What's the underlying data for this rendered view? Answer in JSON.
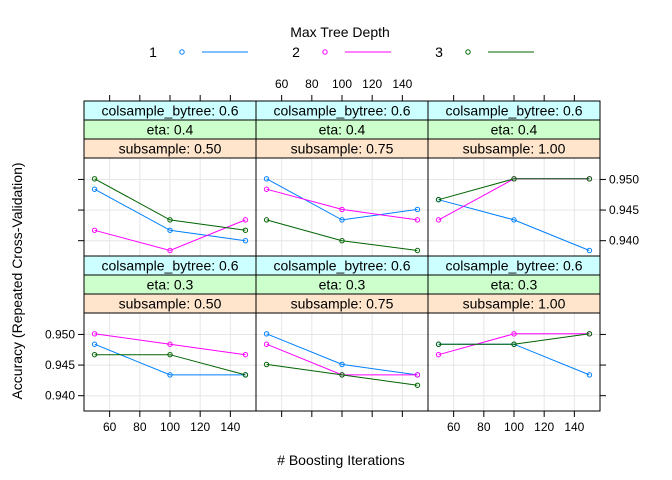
{
  "chart_data": {
    "type": "line",
    "xlabel": "# Boosting Iterations",
    "ylabel": "Accuracy (Repeated Cross-Validation)",
    "legend": {
      "title": "Max Tree Depth",
      "position": "top",
      "entries": [
        {
          "name": "1",
          "color": "#0080ff"
        },
        {
          "name": "2",
          "color": "#ff00ff"
        },
        {
          "name": "3",
          "color": "#006400"
        }
      ]
    },
    "x": [
      50,
      100,
      150
    ],
    "xticks": [
      60,
      80,
      100,
      120,
      140
    ],
    "xlim": [
      43,
      157
    ],
    "yticks": [
      0.94,
      0.945,
      0.95
    ],
    "ytick_labels": [
      "0.940",
      "0.945",
      "0.950"
    ],
    "ylim": [
      0.9375,
      0.9535
    ],
    "grid": true,
    "panels": [
      {
        "strips": [
          "colsample_bytree: 0.6",
          "eta: 0.4",
          "subsample: 0.50"
        ],
        "series": [
          {
            "name": "1",
            "values": [
              0.9484,
              0.9417,
              0.94
            ]
          },
          {
            "name": "2",
            "values": [
              0.9417,
              0.9384,
              0.9434
            ]
          },
          {
            "name": "3",
            "values": [
              0.9501,
              0.9434,
              0.9417
            ]
          }
        ]
      },
      {
        "strips": [
          "colsample_bytree: 0.6",
          "eta: 0.4",
          "subsample: 0.75"
        ],
        "series": [
          {
            "name": "1",
            "values": [
              0.9501,
              0.9434,
              0.9451
            ]
          },
          {
            "name": "2",
            "values": [
              0.9484,
              0.9451,
              0.9434
            ]
          },
          {
            "name": "3",
            "values": [
              0.9434,
              0.94,
              0.9384
            ]
          }
        ]
      },
      {
        "strips": [
          "colsample_bytree: 0.6",
          "eta: 0.4",
          "subsample: 1.00"
        ],
        "series": [
          {
            "name": "1",
            "values": [
              0.9467,
              0.9434,
              0.9384
            ]
          },
          {
            "name": "2",
            "values": [
              0.9434,
              0.9501,
              0.9501
            ]
          },
          {
            "name": "3",
            "values": [
              0.9467,
              0.9501,
              0.9501
            ]
          }
        ]
      },
      {
        "strips": [
          "colsample_bytree: 0.6",
          "eta: 0.3",
          "subsample: 0.50"
        ],
        "series": [
          {
            "name": "1",
            "values": [
              0.9484,
              0.9434,
              0.9434
            ]
          },
          {
            "name": "2",
            "values": [
              0.9501,
              0.9484,
              0.9467
            ]
          },
          {
            "name": "3",
            "values": [
              0.9467,
              0.9467,
              0.9434
            ]
          }
        ]
      },
      {
        "strips": [
          "colsample_bytree: 0.6",
          "eta: 0.3",
          "subsample: 0.75"
        ],
        "series": [
          {
            "name": "1",
            "values": [
              0.9501,
              0.9451,
              0.9434
            ]
          },
          {
            "name": "2",
            "values": [
              0.9484,
              0.9434,
              0.9434
            ]
          },
          {
            "name": "3",
            "values": [
              0.9451,
              0.9434,
              0.9417
            ]
          }
        ]
      },
      {
        "strips": [
          "colsample_bytree: 0.6",
          "eta: 0.3",
          "subsample: 1.00"
        ],
        "series": [
          {
            "name": "1",
            "values": [
              0.9484,
              0.9484,
              0.9434
            ]
          },
          {
            "name": "2",
            "values": [
              0.9467,
              0.9501,
              0.9501
            ]
          },
          {
            "name": "3",
            "values": [
              0.9484,
              0.9484,
              0.9501
            ]
          }
        ]
      }
    ],
    "colors": {
      "strip_factor1": "#ccffff",
      "strip_factor2": "#ccffcc",
      "strip_factor3": "#ffe5cc",
      "grid": "#e6e6e6"
    }
  }
}
